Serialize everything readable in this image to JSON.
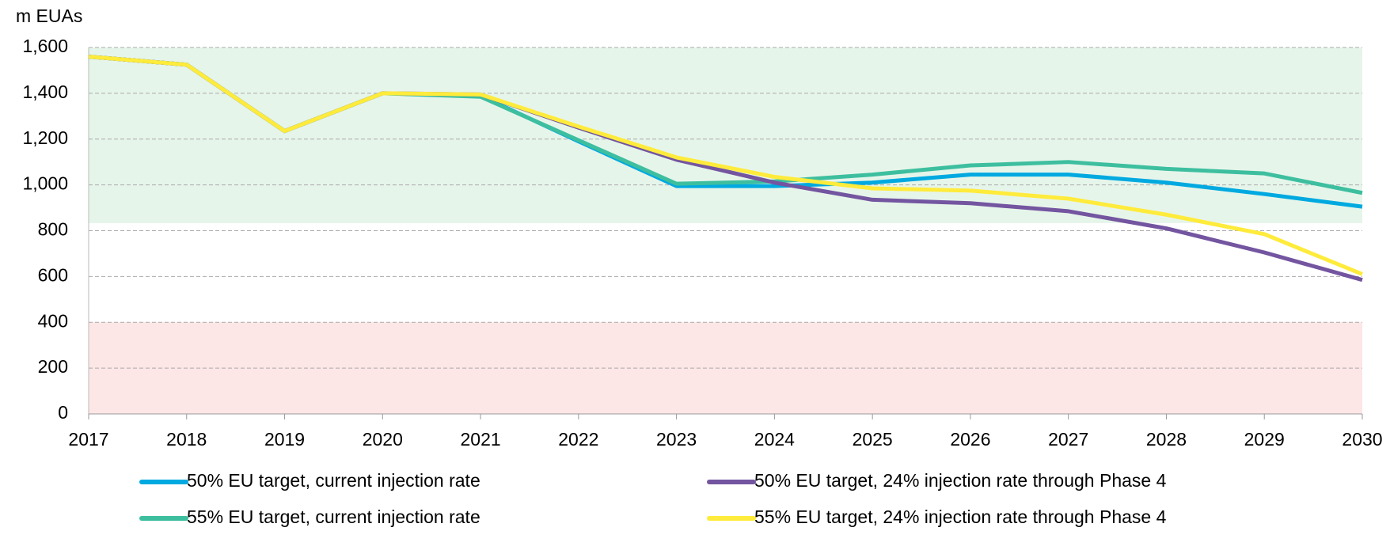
{
  "chart_data": {
    "type": "line",
    "y_axis_label": "m EUAs",
    "categories": [
      "2017",
      "2018",
      "2019",
      "2020",
      "2021",
      "2022",
      "2023",
      "2024",
      "2025",
      "2026",
      "2027",
      "2028",
      "2029",
      "2030"
    ],
    "series": [
      {
        "name": "50% EU target, current injection rate",
        "color": "#00a9e0",
        "values": [
          1560,
          1525,
          1235,
          1400,
          1390,
          1190,
          995,
          995,
          1010,
          1045,
          1045,
          1010,
          960,
          905
        ]
      },
      {
        "name": "55% EU target, current injection rate",
        "color": "#3dbf9f",
        "values": [
          1560,
          1525,
          1235,
          1400,
          1385,
          1195,
          1005,
          1015,
          1045,
          1085,
          1100,
          1070,
          1050,
          965
        ]
      },
      {
        "name": "50% EU target, 24% injection rate through Phase 4",
        "color": "#7355a0",
        "values": [
          1560,
          1525,
          1235,
          1400,
          1395,
          1250,
          1110,
          1010,
          935,
          920,
          885,
          810,
          705,
          585
        ]
      },
      {
        "name": "55% EU target, 24% injection rate through Phase 4",
        "color": "#ffeb3b",
        "values": [
          1560,
          1525,
          1235,
          1400,
          1395,
          1255,
          1120,
          1035,
          985,
          975,
          940,
          870,
          785,
          610
        ]
      }
    ],
    "bands": [
      {
        "from": 833,
        "to": 1600,
        "color": "#e6f5ea"
      },
      {
        "from": 0,
        "to": 400,
        "color": "#fde6e6"
      }
    ],
    "ylim": [
      0,
      1600
    ],
    "yticks": [
      0,
      200,
      400,
      600,
      800,
      {
        "value": 1000,
        "label": "1,000"
      },
      {
        "value": 1200,
        "label": "1,200"
      },
      {
        "value": 1400,
        "label": "1,400"
      },
      {
        "value": 1600,
        "label": "1,600"
      }
    ],
    "grid": true,
    "legend": "bottom"
  }
}
